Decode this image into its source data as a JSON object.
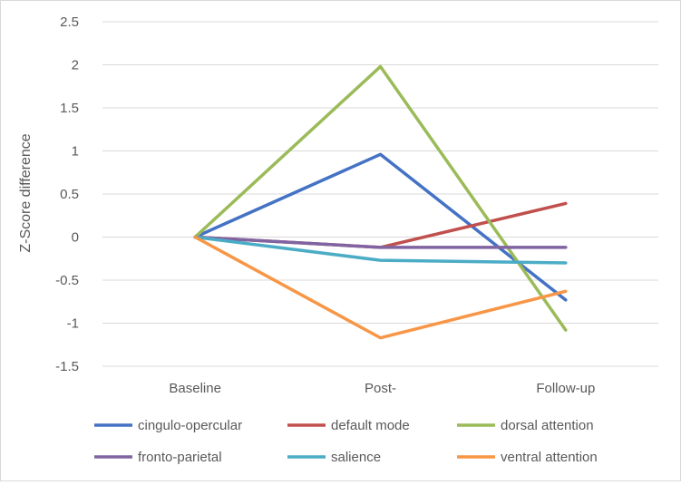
{
  "chart_data": {
    "type": "line",
    "title": "",
    "xlabel": "",
    "ylabel": "Z-Score difference",
    "categories": [
      "Baseline",
      "Post-",
      "Follow-up"
    ],
    "ylim": [
      -1.5,
      2.5
    ],
    "yticks": [
      "2.5",
      "2",
      "1.5",
      "1",
      "0.5",
      "0",
      "-0.5",
      "-1",
      "-1.5"
    ],
    "ytick_values": [
      2.5,
      2,
      1.5,
      1,
      0.5,
      0,
      -0.5,
      -1,
      -1.5
    ],
    "grid": "horizontal",
    "legend_position": "bottom",
    "series": [
      {
        "name": "cingulo-opercular",
        "color": "#4472C4",
        "values": [
          0,
          0.96,
          -0.73
        ]
      },
      {
        "name": "default mode",
        "color": "#C0504D",
        "values": [
          0,
          -0.12,
          0.39
        ]
      },
      {
        "name": "dorsal attention",
        "color": "#9BBB59",
        "values": [
          0,
          1.98,
          -1.08
        ]
      },
      {
        "name": "fronto-parietal",
        "color": "#8064A2",
        "values": [
          0,
          -0.12,
          -0.12
        ]
      },
      {
        "name": "salience",
        "color": "#4BACC6",
        "values": [
          0,
          -0.27,
          -0.3
        ]
      },
      {
        "name": "ventral attention",
        "color": "#F79646",
        "values": [
          0,
          -1.17,
          -0.63
        ]
      }
    ]
  }
}
